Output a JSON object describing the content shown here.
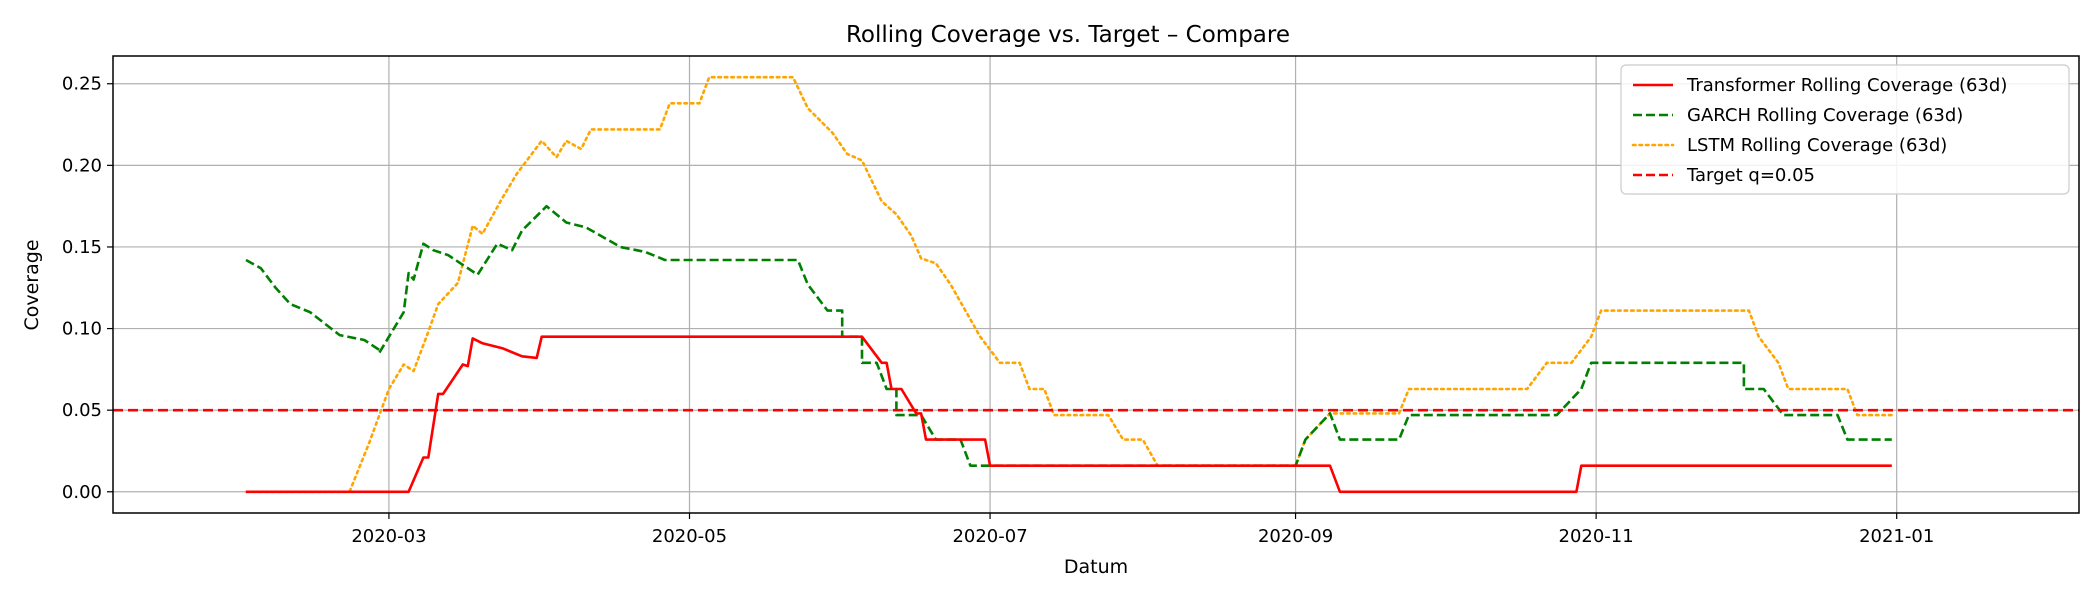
{
  "chart_data": {
    "type": "line",
    "title": "Rolling Coverage vs. Target – Compare",
    "xlabel": "Datum",
    "ylabel": "Coverage",
    "x_type": "date",
    "xlim": [
      "2020-01-05",
      "2021-02-07"
    ],
    "ylim": [
      -0.013,
      0.267
    ],
    "x_ticks": [
      {
        "value": "2020-03-01",
        "label": "2020-03"
      },
      {
        "value": "2020-05-01",
        "label": "2020-05"
      },
      {
        "value": "2020-07-01",
        "label": "2020-07"
      },
      {
        "value": "2020-09-01",
        "label": "2020-09"
      },
      {
        "value": "2020-11-01",
        "label": "2020-11"
      },
      {
        "value": "2021-01-01",
        "label": "2021-01"
      }
    ],
    "y_ticks": [
      {
        "value": 0.0,
        "label": "0.00"
      },
      {
        "value": 0.05,
        "label": "0.05"
      },
      {
        "value": 0.1,
        "label": "0.10"
      },
      {
        "value": 0.15,
        "label": "0.15"
      },
      {
        "value": 0.2,
        "label": "0.20"
      },
      {
        "value": 0.25,
        "label": "0.25"
      }
    ],
    "grid": true,
    "legend_position": "top-right",
    "series": [
      {
        "name": "Transformer Rolling Coverage (63d)",
        "color": "#ff0000",
        "style": "solid",
        "points": [
          [
            "2020-02-01",
            0.0
          ],
          [
            "2020-03-05",
            0.0
          ],
          [
            "2020-03-08",
            0.021
          ],
          [
            "2020-03-09",
            0.021
          ],
          [
            "2020-03-11",
            0.06
          ],
          [
            "2020-03-12",
            0.06
          ],
          [
            "2020-03-16",
            0.078
          ],
          [
            "2020-03-17",
            0.077
          ],
          [
            "2020-03-18",
            0.094
          ],
          [
            "2020-03-20",
            0.091
          ],
          [
            "2020-03-24",
            0.088
          ],
          [
            "2020-03-28",
            0.083
          ],
          [
            "2020-03-31",
            0.082
          ],
          [
            "2020-04-01",
            0.095
          ],
          [
            "2020-06-05",
            0.095
          ],
          [
            "2020-06-09",
            0.079
          ],
          [
            "2020-06-10",
            0.079
          ],
          [
            "2020-06-11",
            0.063
          ],
          [
            "2020-06-13",
            0.063
          ],
          [
            "2020-06-16",
            0.048
          ],
          [
            "2020-06-17",
            0.048
          ],
          [
            "2020-06-18",
            0.032
          ],
          [
            "2020-06-30",
            0.032
          ],
          [
            "2020-07-01",
            0.016
          ],
          [
            "2020-09-08",
            0.016
          ],
          [
            "2020-09-10",
            0.0
          ],
          [
            "2020-10-28",
            0.0
          ],
          [
            "2020-10-29",
            0.016
          ],
          [
            "2020-12-31",
            0.016
          ]
        ]
      },
      {
        "name": "GARCH Rolling Coverage (63d)",
        "color": "#008000",
        "style": "dashed",
        "points": [
          [
            "2020-02-01",
            0.142
          ],
          [
            "2020-02-04",
            0.137
          ],
          [
            "2020-02-07",
            0.125
          ],
          [
            "2020-02-10",
            0.115
          ],
          [
            "2020-02-14",
            0.11
          ],
          [
            "2020-02-17",
            0.103
          ],
          [
            "2020-02-20",
            0.096
          ],
          [
            "2020-02-25",
            0.093
          ],
          [
            "2020-02-28",
            0.087
          ],
          [
            "2020-02-28",
            0.085
          ],
          [
            "2020-03-04",
            0.11
          ],
          [
            "2020-03-05",
            0.134
          ],
          [
            "2020-03-06",
            0.13
          ],
          [
            "2020-03-08",
            0.152
          ],
          [
            "2020-03-10",
            0.148
          ],
          [
            "2020-03-13",
            0.145
          ],
          [
            "2020-03-19",
            0.133
          ],
          [
            "2020-03-23",
            0.152
          ],
          [
            "2020-03-26",
            0.148
          ],
          [
            "2020-03-28",
            0.16
          ],
          [
            "2020-04-02",
            0.175
          ],
          [
            "2020-04-06",
            0.165
          ],
          [
            "2020-04-10",
            0.162
          ],
          [
            "2020-04-17",
            0.15
          ],
          [
            "2020-04-22",
            0.147
          ],
          [
            "2020-04-26",
            0.142
          ],
          [
            "2020-05-23",
            0.142
          ],
          [
            "2020-05-25",
            0.127
          ],
          [
            "2020-05-29",
            0.111
          ],
          [
            "2020-06-01",
            0.111
          ],
          [
            "2020-06-01",
            0.095
          ],
          [
            "2020-06-05",
            0.095
          ],
          [
            "2020-06-05",
            0.079
          ],
          [
            "2020-06-08",
            0.079
          ],
          [
            "2020-06-10",
            0.063
          ],
          [
            "2020-06-12",
            0.063
          ],
          [
            "2020-06-12",
            0.047
          ],
          [
            "2020-06-17",
            0.047
          ],
          [
            "2020-06-20",
            0.032
          ],
          [
            "2020-06-25",
            0.032
          ],
          [
            "2020-06-27",
            0.016
          ],
          [
            "2020-07-01",
            0.016
          ],
          [
            "2020-09-01",
            0.016
          ],
          [
            "2020-09-03",
            0.032
          ],
          [
            "2020-09-08",
            0.048
          ],
          [
            "2020-09-10",
            0.032
          ],
          [
            "2020-09-22",
            0.032
          ],
          [
            "2020-09-24",
            0.047
          ],
          [
            "2020-10-24",
            0.047
          ],
          [
            "2020-10-29",
            0.063
          ],
          [
            "2020-10-31",
            0.079
          ],
          [
            "2020-12-01",
            0.079
          ],
          [
            "2020-12-01",
            0.063
          ],
          [
            "2020-12-05",
            0.063
          ],
          [
            "2020-12-09",
            0.047
          ],
          [
            "2020-12-20",
            0.047
          ],
          [
            "2020-12-22",
            0.032
          ],
          [
            "2020-12-31",
            0.032
          ]
        ]
      },
      {
        "name": "LSTM Rolling Coverage (63d)",
        "color": "#ffa500",
        "style": "dotted",
        "points": [
          [
            "2020-02-01",
            0.0
          ],
          [
            "2020-02-22",
            0.0
          ],
          [
            "2020-02-26",
            0.03
          ],
          [
            "2020-03-01",
            0.063
          ],
          [
            "2020-03-04",
            0.078
          ],
          [
            "2020-03-06",
            0.074
          ],
          [
            "2020-03-09",
            0.098
          ],
          [
            "2020-03-11",
            0.115
          ],
          [
            "2020-03-15",
            0.128
          ],
          [
            "2020-03-18",
            0.163
          ],
          [
            "2020-03-20",
            0.158
          ],
          [
            "2020-03-24",
            0.18
          ],
          [
            "2020-03-27",
            0.195
          ],
          [
            "2020-03-30",
            0.207
          ],
          [
            "2020-04-01",
            0.215
          ],
          [
            "2020-04-04",
            0.205
          ],
          [
            "2020-04-06",
            0.215
          ],
          [
            "2020-04-09",
            0.21
          ],
          [
            "2020-04-11",
            0.222
          ],
          [
            "2020-04-25",
            0.222
          ],
          [
            "2020-04-27",
            0.238
          ],
          [
            "2020-05-03",
            0.238
          ],
          [
            "2020-05-05",
            0.254
          ],
          [
            "2020-05-22",
            0.254
          ],
          [
            "2020-05-25",
            0.235
          ],
          [
            "2020-05-30",
            0.22
          ],
          [
            "2020-06-02",
            0.207
          ],
          [
            "2020-06-05",
            0.203
          ],
          [
            "2020-06-09",
            0.178
          ],
          [
            "2020-06-12",
            0.17
          ],
          [
            "2020-06-15",
            0.157
          ],
          [
            "2020-06-17",
            0.143
          ],
          [
            "2020-06-20",
            0.14
          ],
          [
            "2020-06-23",
            0.127
          ],
          [
            "2020-06-26",
            0.111
          ],
          [
            "2020-06-29",
            0.095
          ],
          [
            "2020-07-03",
            0.079
          ],
          [
            "2020-07-07",
            0.079
          ],
          [
            "2020-07-09",
            0.063
          ],
          [
            "2020-07-12",
            0.063
          ],
          [
            "2020-07-14",
            0.047
          ],
          [
            "2020-07-25",
            0.047
          ],
          [
            "2020-07-28",
            0.032
          ],
          [
            "2020-08-01",
            0.032
          ],
          [
            "2020-08-04",
            0.016
          ],
          [
            "2020-09-01",
            0.016
          ],
          [
            "2020-09-03",
            0.032
          ],
          [
            "2020-09-08",
            0.048
          ],
          [
            "2020-09-22",
            0.048
          ],
          [
            "2020-09-24",
            0.063
          ],
          [
            "2020-10-18",
            0.063
          ],
          [
            "2020-10-22",
            0.079
          ],
          [
            "2020-10-27",
            0.079
          ],
          [
            "2020-10-31",
            0.095
          ],
          [
            "2020-11-02",
            0.111
          ],
          [
            "2020-12-02",
            0.111
          ],
          [
            "2020-12-04",
            0.095
          ],
          [
            "2020-12-08",
            0.079
          ],
          [
            "2020-12-10",
            0.063
          ],
          [
            "2020-12-22",
            0.063
          ],
          [
            "2020-12-24",
            0.047
          ],
          [
            "2020-12-31",
            0.047
          ]
        ]
      },
      {
        "name": "Target q=0.05",
        "color": "#ff0000",
        "style": "dashed",
        "constant": 0.05
      }
    ]
  }
}
